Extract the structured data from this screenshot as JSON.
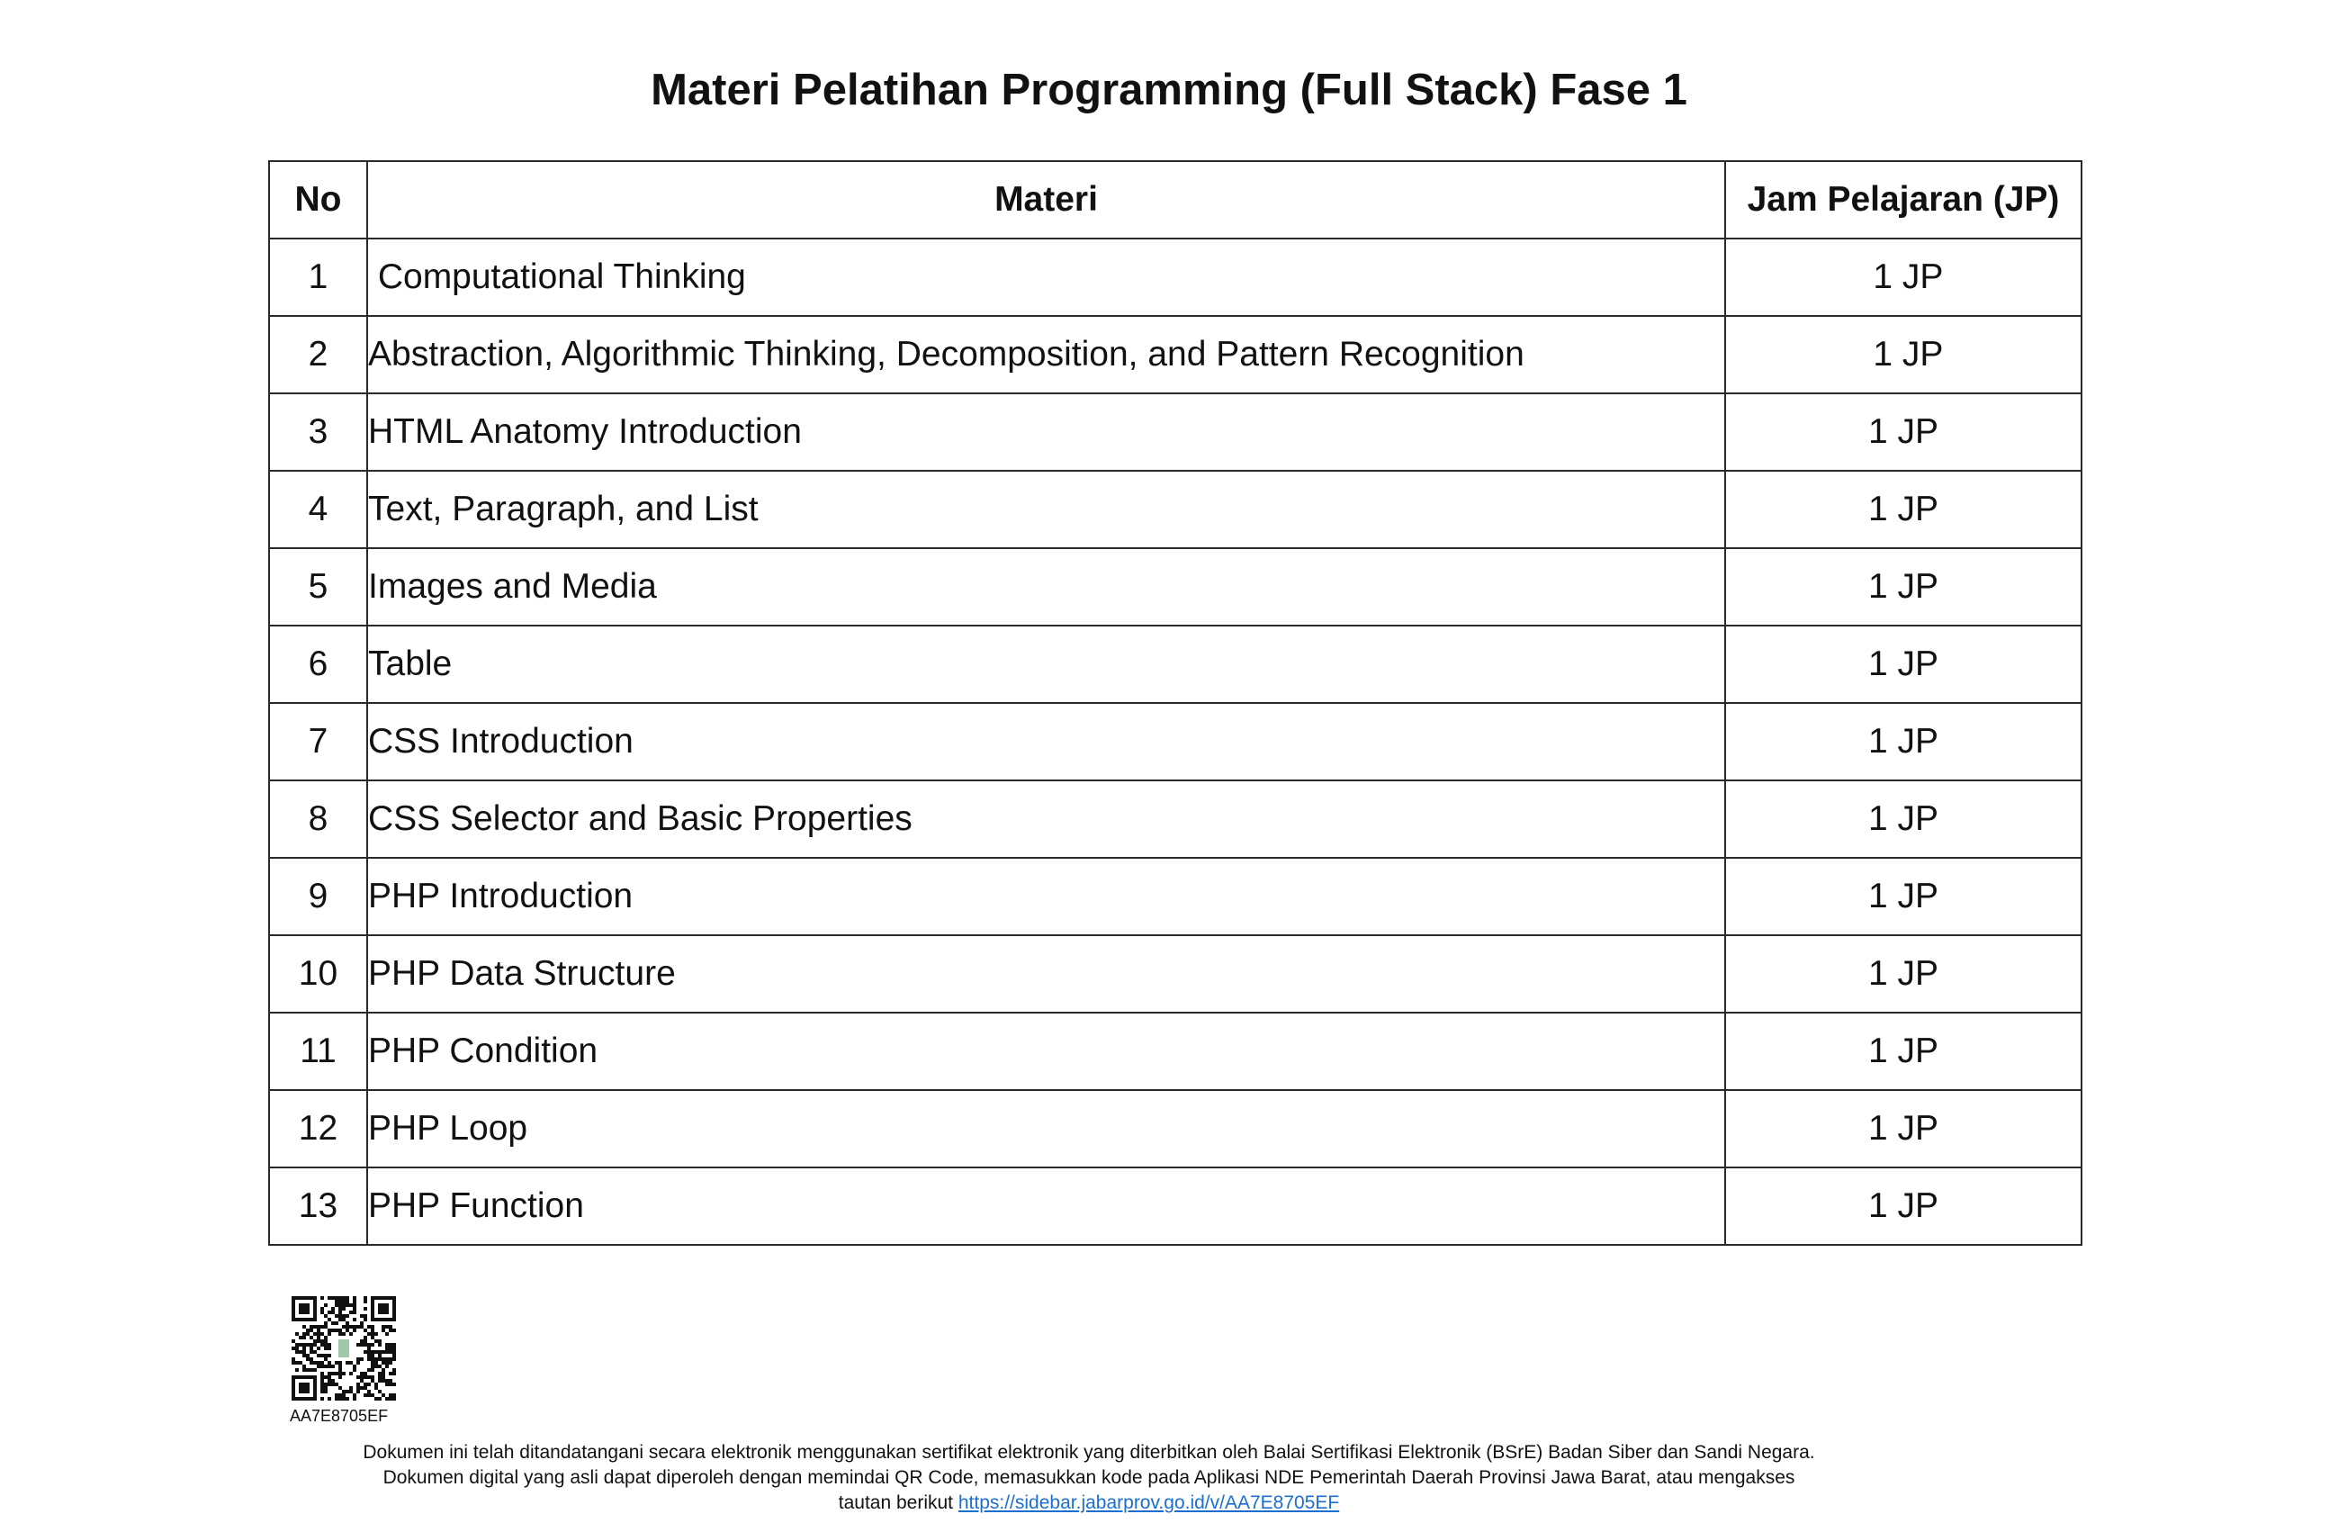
{
  "title": "Materi Pelatihan Programming (Full Stack) Fase 1",
  "table": {
    "headers": {
      "no": "No",
      "materi": "Materi",
      "jp": "Jam Pelajaran (JP)"
    },
    "rows": [
      {
        "no": "1",
        "materi": " Computational Thinking",
        "jp": " 1 JP"
      },
      {
        "no": "2",
        "materi": "Abstraction, Algorithmic Thinking, Decomposition, and Pattern Recognition",
        "jp": " 1 JP"
      },
      {
        "no": "3",
        "materi": "HTML Anatomy Introduction",
        "jp": "1 JP"
      },
      {
        "no": "4",
        "materi": "Text, Paragraph, and List",
        "jp": "1 JP"
      },
      {
        "no": "5",
        "materi": "Images and Media",
        "jp": "1 JP"
      },
      {
        "no": "6",
        "materi": "Table",
        "jp": "1 JP"
      },
      {
        "no": "7",
        "materi": "CSS Introduction",
        "jp": "1 JP"
      },
      {
        "no": "8",
        "materi": "CSS Selector and Basic Properties",
        "jp": "1 JP"
      },
      {
        "no": "9",
        "materi": "PHP Introduction",
        "jp": "1 JP"
      },
      {
        "no": "10",
        "materi": "PHP Data Structure",
        "jp": "1 JP"
      },
      {
        "no": "11",
        "materi": "PHP Condition",
        "jp": "1 JP"
      },
      {
        "no": "12",
        "materi": "PHP Loop",
        "jp": "1 JP"
      },
      {
        "no": "13",
        "materi": "PHP Function",
        "jp": "1 JP"
      }
    ]
  },
  "footer": {
    "qr_icon": "qr-code-icon",
    "doc_code": "AA7E8705EF",
    "notice_line1": "Dokumen ini telah ditandatangani secara elektronik menggunakan sertifikat elektronik yang diterbitkan oleh Balai Sertifikasi Elektronik (BSrE) Badan Siber dan Sandi Negara.",
    "notice_line2": "Dokumen digital yang asli dapat diperoleh dengan memindai QR Code, memasukkan kode pada Aplikasi NDE Pemerintah Daerah Provinsi Jawa Barat, atau mengakses",
    "notice_line3_prefix": "tautan berikut ",
    "notice_link": "https://sidebar.jabarprov.go.id/v/AA7E8705EF"
  },
  "colors": {
    "link": "#1a6fd1",
    "border": "#2a2a2a",
    "text": "#111111"
  }
}
